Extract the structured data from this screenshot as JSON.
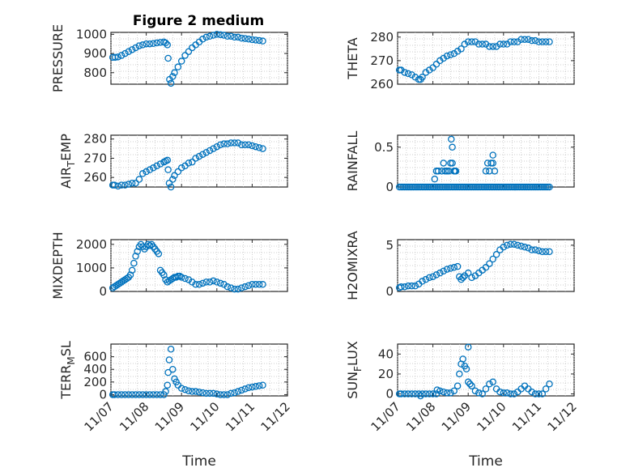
{
  "figure": {
    "title": "Figure 2 medium"
  },
  "chart_data": [
    {
      "type": "scatter",
      "ylabel": "PRESSURE",
      "xlim": [
        0,
        5
      ],
      "ylim": [
        740,
        1010
      ],
      "yticks": [
        800,
        900,
        1000
      ],
      "yticklabels": [
        "800",
        "900",
        "1000"
      ],
      "xticks": [
        0,
        1,
        2,
        3,
        4,
        5
      ],
      "xticklabels": [
        "11/07",
        "11/08",
        "11/09",
        "11/10",
        "11/11",
        "11/12"
      ],
      "show_xticklabels": false,
      "grid": true,
      "x": [
        0.05,
        0.12,
        0.2,
        0.3,
        0.4,
        0.5,
        0.6,
        0.7,
        0.8,
        0.9,
        1.0,
        1.1,
        1.2,
        1.3,
        1.4,
        1.5,
        1.55,
        1.6,
        1.62,
        1.66,
        1.7,
        1.75,
        1.8,
        1.9,
        2.0,
        2.1,
        2.2,
        2.3,
        2.4,
        2.5,
        2.6,
        2.7,
        2.8,
        2.9,
        3.0,
        3.1,
        3.2,
        3.3,
        3.4,
        3.5,
        3.6,
        3.7,
        3.8,
        3.9,
        4.0,
        4.1,
        4.2,
        4.3
      ],
      "y": [
        880,
        880,
        882,
        890,
        900,
        910,
        920,
        930,
        940,
        945,
        950,
        950,
        952,
        955,
        958,
        960,
        955,
        945,
        875,
        765,
        745,
        780,
        800,
        830,
        860,
        890,
        910,
        930,
        945,
        960,
        975,
        985,
        990,
        995,
        1000,
        998,
        995,
        990,
        990,
        985,
        985,
        980,
        978,
        975,
        972,
        970,
        968,
        965
      ]
    },
    {
      "type": "scatter",
      "ylabel": "THETA",
      "xlim": [
        0,
        5
      ],
      "ylim": [
        260,
        282
      ],
      "yticks": [
        260,
        270,
        280
      ],
      "yticklabels": [
        "260",
        "270",
        "280"
      ],
      "xticks": [
        0,
        1,
        2,
        3,
        4,
        5
      ],
      "show_xticklabels": false,
      "grid": true,
      "x": [
        0.05,
        0.1,
        0.2,
        0.3,
        0.4,
        0.5,
        0.6,
        0.65,
        0.7,
        0.8,
        0.9,
        1.0,
        1.1,
        1.2,
        1.3,
        1.4,
        1.5,
        1.6,
        1.7,
        1.8,
        1.9,
        2.0,
        2.1,
        2.2,
        2.3,
        2.4,
        2.5,
        2.6,
        2.7,
        2.8,
        2.9,
        3.0,
        3.1,
        3.2,
        3.3,
        3.4,
        3.5,
        3.6,
        3.7,
        3.8,
        3.9,
        4.0,
        4.1,
        4.2,
        4.3
      ],
      "y": [
        266,
        266,
        265,
        264.5,
        264,
        263,
        262,
        262,
        263,
        265,
        266,
        267,
        268.5,
        270,
        271,
        272,
        272.5,
        273,
        274,
        275,
        277,
        278,
        278,
        278,
        277,
        277,
        277,
        276,
        276,
        276,
        277,
        277,
        277,
        278,
        278,
        278,
        279,
        279,
        279,
        278.5,
        278.5,
        278,
        278,
        278,
        278
      ]
    },
    {
      "type": "scatter",
      "ylabel": "AIR_TEMP",
      "xlim": [
        0,
        5
      ],
      "ylim": [
        255,
        282
      ],
      "yticks": [
        260,
        270,
        280
      ],
      "yticklabels": [
        "260",
        "270",
        "280"
      ],
      "xticks": [
        0,
        1,
        2,
        3,
        4,
        5
      ],
      "show_xticklabels": false,
      "grid": true,
      "x": [
        0.05,
        0.1,
        0.2,
        0.3,
        0.4,
        0.5,
        0.6,
        0.7,
        0.8,
        0.9,
        1.0,
        1.1,
        1.2,
        1.3,
        1.4,
        1.5,
        1.55,
        1.6,
        1.62,
        1.65,
        1.7,
        1.75,
        1.8,
        1.9,
        2.0,
        2.1,
        2.2,
        2.3,
        2.4,
        2.5,
        2.6,
        2.7,
        2.8,
        2.9,
        3.0,
        3.1,
        3.2,
        3.3,
        3.4,
        3.5,
        3.6,
        3.7,
        3.8,
        3.9,
        4.0,
        4.1,
        4.2,
        4.3
      ],
      "y": [
        256,
        256,
        255.5,
        256,
        256,
        256.5,
        257,
        257,
        259,
        262,
        263,
        264,
        265,
        266,
        267,
        268,
        268.5,
        269,
        264,
        257,
        255,
        259,
        261,
        263,
        265,
        266,
        267.5,
        268,
        270,
        271,
        272,
        273,
        274,
        275,
        276,
        277,
        277.5,
        277.5,
        278,
        278,
        278,
        277,
        277,
        277,
        276.5,
        276,
        275.5,
        275
      ]
    },
    {
      "type": "scatter",
      "ylabel": "RAINFALL",
      "xlim": [
        0,
        5
      ],
      "ylim": [
        0,
        0.65
      ],
      "yticks": [
        0,
        0.5
      ],
      "yticklabels": [
        "0",
        "0.5"
      ],
      "xticks": [
        0,
        1,
        2,
        3,
        4,
        5
      ],
      "show_xticklabels": false,
      "grid": true,
      "x": [
        0.05,
        0.1,
        0.15,
        0.2,
        0.25,
        0.3,
        0.35,
        0.4,
        0.45,
        0.5,
        0.55,
        0.6,
        0.65,
        0.7,
        0.75,
        0.8,
        0.85,
        0.9,
        0.95,
        1.0,
        1.05,
        1.1,
        1.15,
        1.2,
        1.25,
        1.3,
        1.35,
        1.4,
        1.45,
        1.5,
        1.55,
        1.6,
        1.65,
        1.7,
        1.75,
        1.8,
        1.85,
        1.9,
        1.95,
        2.0,
        2.05,
        2.1,
        2.15,
        2.2,
        2.25,
        2.3,
        2.35,
        2.4,
        2.45,
        2.5,
        2.55,
        2.6,
        2.65,
        2.7,
        2.75,
        2.8,
        2.85,
        2.9,
        2.95,
        3.0,
        3.05,
        3.1,
        3.15,
        3.2,
        3.25,
        3.3,
        3.35,
        3.4,
        3.45,
        3.5,
        3.55,
        3.6,
        3.65,
        3.7,
        3.75,
        3.8,
        3.85,
        3.9,
        3.95,
        4.0,
        4.05,
        4.1,
        4.15,
        4.2,
        4.25,
        4.3,
        1.05,
        1.1,
        1.15,
        1.25,
        1.3,
        1.35,
        1.4,
        1.45,
        1.5,
        1.52,
        1.55,
        1.55,
        1.6,
        1.62,
        1.65,
        2.5,
        2.55,
        2.6,
        2.65,
        2.7,
        2.75,
        2.7
      ],
      "y": [
        0,
        0,
        0,
        0,
        0,
        0,
        0,
        0,
        0,
        0,
        0,
        0,
        0,
        0,
        0,
        0,
        0,
        0,
        0,
        0,
        0,
        0,
        0,
        0,
        0,
        0,
        0,
        0,
        0,
        0,
        0,
        0,
        0,
        0,
        0,
        0,
        0,
        0,
        0,
        0,
        0,
        0,
        0,
        0,
        0,
        0,
        0,
        0,
        0,
        0,
        0,
        0,
        0,
        0,
        0,
        0,
        0,
        0,
        0,
        0,
        0,
        0,
        0,
        0,
        0,
        0,
        0,
        0,
        0,
        0,
        0,
        0,
        0,
        0,
        0,
        0,
        0,
        0,
        0,
        0,
        0,
        0,
        0,
        0,
        0,
        0,
        0.1,
        0.2,
        0.2,
        0.2,
        0.3,
        0.2,
        0.2,
        0.2,
        0.3,
        0.6,
        0.5,
        0.3,
        0.2,
        0.2,
        0.2,
        0.2,
        0.3,
        0.2,
        0.3,
        0.3,
        0.2,
        0.4
      ]
    },
    {
      "type": "scatter",
      "ylabel": "MIXDEPTH",
      "xlim": [
        0,
        5
      ],
      "ylim": [
        0,
        2200
      ],
      "yticks": [
        0,
        1000,
        2000
      ],
      "yticklabels": [
        "0",
        "1000",
        "2000"
      ],
      "xticks": [
        0,
        1,
        2,
        3,
        4,
        5
      ],
      "show_xticklabels": false,
      "grid": true,
      "x": [
        0.05,
        0.1,
        0.15,
        0.2,
        0.25,
        0.3,
        0.35,
        0.4,
        0.45,
        0.5,
        0.55,
        0.6,
        0.65,
        0.7,
        0.75,
        0.8,
        0.85,
        0.9,
        0.95,
        1.0,
        1.05,
        1.1,
        1.15,
        1.2,
        1.25,
        1.3,
        1.35,
        1.4,
        1.45,
        1.5,
        1.55,
        1.6,
        1.65,
        1.7,
        1.75,
        1.8,
        1.85,
        1.9,
        1.95,
        2.0,
        2.1,
        2.2,
        2.3,
        2.4,
        2.5,
        2.6,
        2.7,
        2.8,
        2.9,
        3.0,
        3.1,
        3.2,
        3.3,
        3.4,
        3.5,
        3.6,
        3.7,
        3.8,
        3.9,
        4.0,
        4.1,
        4.2,
        4.3
      ],
      "y": [
        150,
        200,
        250,
        300,
        350,
        400,
        450,
        500,
        550,
        600,
        700,
        900,
        1200,
        1500,
        1700,
        1900,
        2000,
        1900,
        1800,
        1900,
        2000,
        1950,
        2000,
        1900,
        1800,
        1700,
        1600,
        900,
        800,
        700,
        500,
        400,
        450,
        500,
        550,
        600,
        600,
        650,
        650,
        600,
        550,
        500,
        400,
        300,
        300,
        350,
        400,
        400,
        450,
        400,
        350,
        300,
        200,
        150,
        100,
        100,
        150,
        200,
        250,
        300,
        300,
        300,
        300
      ]
    },
    {
      "type": "scatter",
      "ylabel": "H2OMIXRA",
      "xlim": [
        0,
        5
      ],
      "ylim": [
        0,
        5.6
      ],
      "yticks": [
        0,
        5
      ],
      "yticklabels": [
        "0",
        "5"
      ],
      "xticks": [
        0,
        1,
        2,
        3,
        4,
        5
      ],
      "show_xticklabels": false,
      "grid": true,
      "x": [
        0.05,
        0.1,
        0.2,
        0.3,
        0.4,
        0.5,
        0.6,
        0.7,
        0.8,
        0.9,
        1.0,
        1.1,
        1.2,
        1.3,
        1.4,
        1.5,
        1.6,
        1.7,
        1.75,
        1.8,
        1.85,
        1.9,
        2.0,
        2.1,
        2.2,
        2.3,
        2.4,
        2.5,
        2.6,
        2.7,
        2.8,
        2.9,
        3.0,
        3.1,
        3.2,
        3.3,
        3.4,
        3.5,
        3.6,
        3.7,
        3.8,
        3.9,
        4.0,
        4.1,
        4.2,
        4.3
      ],
      "y": [
        0.4,
        0.5,
        0.5,
        0.6,
        0.6,
        0.6,
        0.8,
        1.1,
        1.3,
        1.5,
        1.6,
        1.8,
        2.0,
        2.2,
        2.4,
        2.5,
        2.6,
        2.7,
        1.6,
        1.3,
        1.5,
        1.7,
        2.0,
        1.5,
        1.7,
        2.0,
        2.3,
        2.6,
        3.0,
        3.5,
        4.0,
        4.5,
        4.8,
        5.0,
        5.1,
        5.1,
        5.0,
        4.9,
        4.8,
        4.7,
        4.5,
        4.5,
        4.4,
        4.3,
        4.3,
        4.3
      ]
    },
    {
      "type": "scatter",
      "ylabel": "TERR_MSL",
      "xlim": [
        0,
        5
      ],
      "ylim": [
        -20,
        800
      ],
      "yticks": [
        0,
        200,
        400,
        600
      ],
      "yticklabels": [
        "0",
        "200",
        "400",
        "600"
      ],
      "xticks": [
        0,
        1,
        2,
        3,
        4,
        5
      ],
      "xticklabels": [
        "11/07",
        "11/08",
        "11/09",
        "11/10",
        "11/11",
        "11/12"
      ],
      "show_xticklabels": true,
      "xlabel": "Time",
      "grid": true,
      "x": [
        0.05,
        0.1,
        0.2,
        0.3,
        0.4,
        0.5,
        0.6,
        0.7,
        0.8,
        0.9,
        1.0,
        1.1,
        1.2,
        1.3,
        1.4,
        1.5,
        1.55,
        1.6,
        1.62,
        1.65,
        1.7,
        1.75,
        1.8,
        1.85,
        1.9,
        2.0,
        2.1,
        2.2,
        2.3,
        2.4,
        2.5,
        2.6,
        2.7,
        2.8,
        2.9,
        3.0,
        3.1,
        3.2,
        3.3,
        3.4,
        3.5,
        3.6,
        3.7,
        3.8,
        3.9,
        4.0,
        4.1,
        4.2,
        4.3
      ],
      "y": [
        0,
        0,
        0,
        0,
        0,
        0,
        0,
        0,
        0,
        0,
        0,
        0,
        0,
        0,
        0,
        0,
        50,
        150,
        350,
        550,
        720,
        400,
        250,
        200,
        150,
        100,
        80,
        60,
        50,
        50,
        40,
        30,
        20,
        20,
        20,
        10,
        0,
        0,
        0,
        20,
        30,
        50,
        70,
        90,
        110,
        120,
        130,
        140,
        150
      ]
    },
    {
      "type": "scatter",
      "ylabel": "SUN_FLUX",
      "xlim": [
        0,
        5
      ],
      "ylim": [
        -2,
        50
      ],
      "yticks": [
        0,
        20,
        40
      ],
      "yticklabels": [
        "0",
        "20",
        "40"
      ],
      "xticks": [
        0,
        1,
        2,
        3,
        4,
        5
      ],
      "xticklabels": [
        "11/07",
        "11/08",
        "11/09",
        "11/10",
        "11/11",
        "11/12"
      ],
      "show_xticklabels": true,
      "xlabel": "Time",
      "grid": true,
      "x": [
        0.05,
        0.1,
        0.2,
        0.3,
        0.4,
        0.5,
        0.6,
        0.7,
        0.8,
        0.9,
        1.0,
        1.1,
        1.2,
        1.3,
        1.4,
        1.5,
        1.6,
        1.7,
        1.75,
        1.8,
        1.85,
        1.9,
        2.0,
        2.05,
        2.1,
        2.2,
        2.3,
        2.4,
        2.5,
        2.6,
        2.7,
        2.8,
        2.9,
        3.0,
        3.1,
        3.2,
        3.3,
        3.4,
        3.5,
        3.6,
        3.7,
        3.8,
        3.9,
        4.0,
        4.1,
        4.2,
        4.3,
        1.12,
        0.65,
        2.0,
        1.95
      ],
      "y": [
        0,
        0,
        0,
        0,
        0,
        0,
        0,
        0,
        0,
        0,
        0,
        0,
        3,
        2,
        1,
        1,
        3,
        8,
        20,
        30,
        35,
        28,
        12,
        10,
        8,
        3,
        1,
        0,
        5,
        10,
        12,
        5,
        2,
        1,
        1,
        0,
        0,
        2,
        5,
        8,
        5,
        2,
        0,
        0,
        0,
        5,
        10,
        4,
        -2,
        47,
        25
      ]
    }
  ]
}
